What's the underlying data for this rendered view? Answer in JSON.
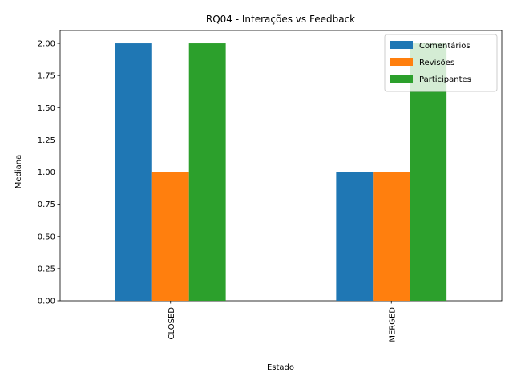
{
  "chart_data": {
    "type": "bar",
    "title": "RQ04 - Interações vs Feedback",
    "xlabel": "Estado",
    "ylabel": "Mediana",
    "categories": [
      "CLOSED",
      "MERGED"
    ],
    "series": [
      {
        "name": "Comentários",
        "color": "#1f77b4",
        "values": [
          2.0,
          1.0
        ]
      },
      {
        "name": "Revisões",
        "color": "#ff7f0e",
        "values": [
          1.0,
          1.0
        ]
      },
      {
        "name": "Participantes",
        "color": "#2ca02c",
        "values": [
          2.0,
          2.0
        ]
      }
    ],
    "ylim": [
      0,
      2.1
    ],
    "yticks": [
      "0.00",
      "0.25",
      "0.50",
      "0.75",
      "1.00",
      "1.25",
      "1.50",
      "1.75",
      "2.00"
    ],
    "legend": "top-right",
    "grid": false
  }
}
